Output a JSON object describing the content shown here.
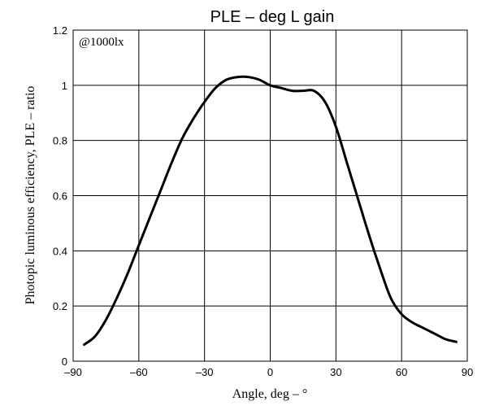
{
  "chart_data": {
    "type": "line",
    "title": "PLE – deg  L gain",
    "xlabel": "Angle, deg – °",
    "ylabel": "Photopic luminous efficiency, PLE – ratio",
    "annotation": "@1000lx",
    "xlim": [
      -90,
      90
    ],
    "ylim": [
      0,
      1.2
    ],
    "xticks": [
      -90,
      -60,
      -30,
      0,
      30,
      60,
      90
    ],
    "xtick_labels": [
      "–90",
      "–60",
      "–30",
      "0",
      "30",
      "60",
      "90"
    ],
    "yticks": [
      0,
      0.2,
      0.4,
      0.6,
      0.8,
      1,
      1.2
    ],
    "ytick_labels": [
      "0",
      "0.2",
      "0.4",
      "0.6",
      "0.8",
      "1",
      "1.2"
    ],
    "grid": true,
    "series": [
      {
        "x": [
          -85,
          -80,
          -75,
          -70,
          -65,
          -60,
          -55,
          -50,
          -45,
          -40,
          -35,
          -30,
          -25,
          -20,
          -15,
          -10,
          -5,
          0,
          5,
          10,
          15,
          20,
          25,
          30,
          35,
          40,
          45,
          50,
          55,
          60,
          65,
          70,
          75,
          80,
          85
        ],
        "y": [
          0.06,
          0.09,
          0.15,
          0.23,
          0.32,
          0.42,
          0.52,
          0.62,
          0.72,
          0.81,
          0.88,
          0.94,
          0.99,
          1.02,
          1.03,
          1.03,
          1.02,
          1.0,
          0.99,
          0.98,
          0.98,
          0.98,
          0.94,
          0.85,
          0.72,
          0.59,
          0.46,
          0.34,
          0.23,
          0.17,
          0.14,
          0.12,
          0.1,
          0.08,
          0.07
        ]
      }
    ]
  }
}
